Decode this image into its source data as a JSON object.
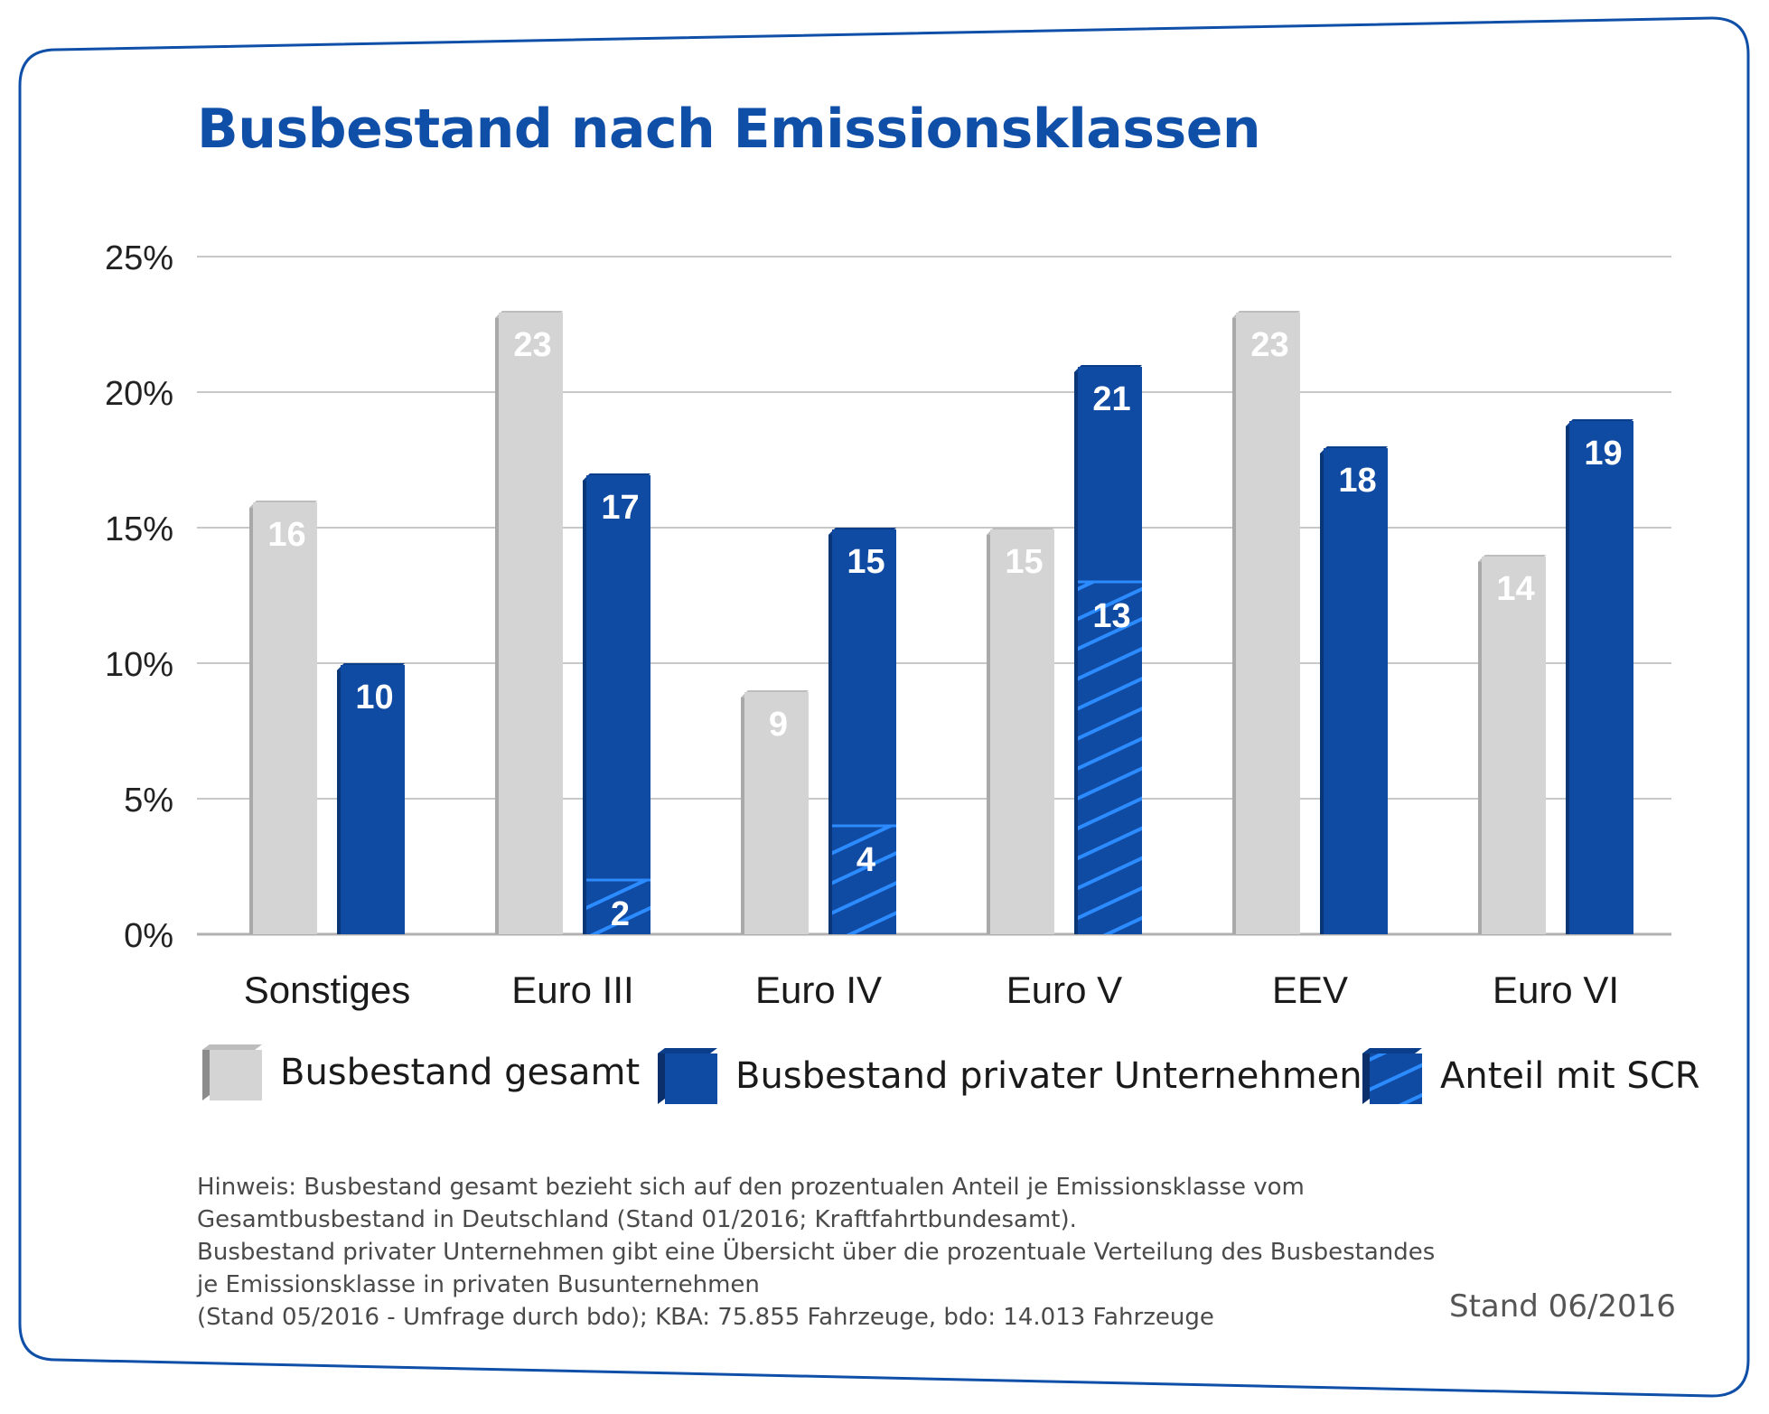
{
  "title": "Busbestand nach Emissionsklassen",
  "colors": {
    "frame": "#0f4fa8",
    "gray": "#d4d4d4",
    "blue": "#0f4aa3",
    "hatch": "#2b8bff",
    "grid": "#c8c8c8"
  },
  "legend": [
    {
      "label": "Busbestand gesamt",
      "style": "gray"
    },
    {
      "label": "Busbestand privater Unternehmen",
      "style": "blue"
    },
    {
      "label": "Anteil mit SCR",
      "style": "hatch"
    }
  ],
  "note_lines": [
    "Hinweis: Busbestand gesamt bezieht sich auf den prozentualen Anteil je Emissionsklasse vom",
    "Gesamtbusbestand in Deutschland (Stand 01/2016; Kraftfahrtbundesamt).",
    "Busbestand privater Unternehmen gibt eine Übersicht über die prozentuale Verteilung des Busbestandes",
    "je Emissionsklasse in privaten Busunternehmen",
    "(Stand 05/2016 - Umfrage durch bdo); KBA: 75.855 Fahrzeuge, bdo: 14.013 Fahrzeuge"
  ],
  "stand": "Stand 06/2016",
  "chart_data": {
    "type": "bar",
    "title": "Busbestand nach Emissionsklassen",
    "categories": [
      "Sonstiges",
      "Euro III",
      "Euro IV",
      "Euro V",
      "EEV",
      "Euro VI"
    ],
    "series": [
      {
        "name": "Busbestand gesamt",
        "values": [
          16,
          23,
          9,
          15,
          23,
          14
        ]
      },
      {
        "name": "Busbestand privater Unternehmen",
        "values": [
          10,
          17,
          15,
          21,
          18,
          19
        ]
      },
      {
        "name": "Anteil mit SCR",
        "values": [
          null,
          2,
          4,
          13,
          null,
          null
        ]
      }
    ],
    "ylim": [
      0,
      25
    ],
    "y_ticks": [
      "0%",
      "5%",
      "10%",
      "15%",
      "20%",
      "25%"
    ],
    "y_tick_values": [
      0,
      5,
      10,
      15,
      20,
      25
    ],
    "grid": true,
    "legend_position": "bottom"
  }
}
